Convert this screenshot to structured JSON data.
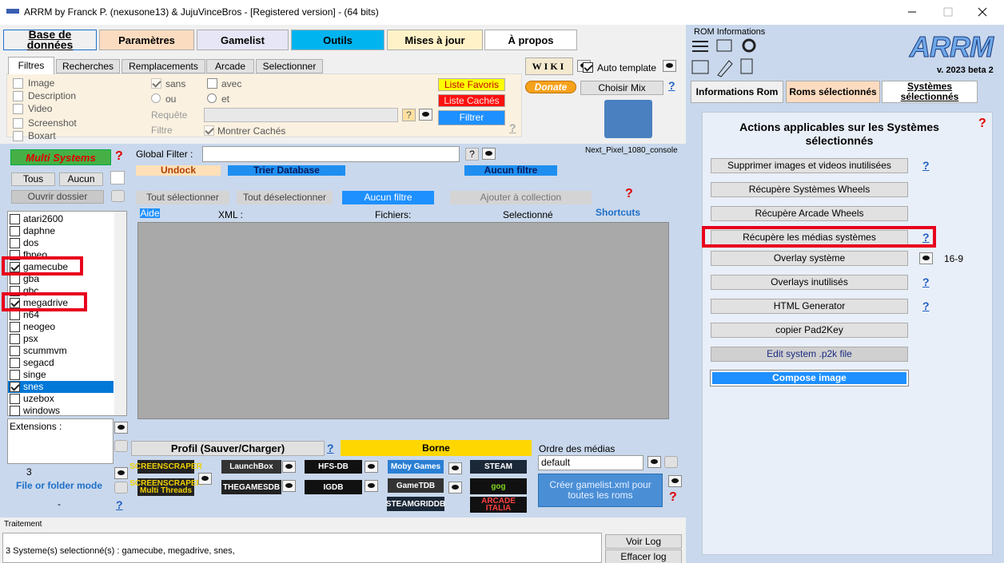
{
  "window": {
    "title": "ARRM by Franck P. (nexusone13) & JujuVinceBros - [Registered version] - (64 bits)"
  },
  "main_tabs": [
    "Base de données",
    "Paramètres",
    "Gamelist",
    "Outils",
    "Mises à jour",
    "À propos"
  ],
  "sub_tabs": [
    "Filtres",
    "Recherches",
    "Remplacements",
    "Arcade",
    "Selectionner"
  ],
  "filters": {
    "media": [
      "Image",
      "Description",
      "Video",
      "Screenshot",
      "Boxart"
    ],
    "sans": "sans",
    "avec": "avec",
    "ou": "ou",
    "et": "et",
    "requete": "Requête",
    "filtre": "Filtre",
    "montrer_caches": "Montrer Cachés",
    "liste_favoris": "Liste Favoris",
    "liste_caches": "Liste Cachés",
    "filtrer": "Filtrer"
  },
  "toolbar": {
    "wiki": "WIKI",
    "auto_template": "Auto template",
    "donate": "Donate",
    "choisir_mix": "Choisir Mix",
    "theme": "Next_Pixel_1080_console"
  },
  "help": "?",
  "systems": {
    "header": "Multi Systems",
    "tous": "Tous",
    "aucun": "Aucun",
    "ouvrir_dossier": "Ouvrir dossier",
    "list": [
      {
        "name": "atari2600",
        "checked": false
      },
      {
        "name": "daphne",
        "checked": false
      },
      {
        "name": "dos",
        "checked": false
      },
      {
        "name": "fbneo",
        "checked": false
      },
      {
        "name": "gamecube",
        "checked": true
      },
      {
        "name": "gba",
        "checked": false
      },
      {
        "name": "gbc",
        "checked": false
      },
      {
        "name": "megadrive",
        "checked": true
      },
      {
        "name": "n64",
        "checked": false
      },
      {
        "name": "neogeo",
        "checked": false
      },
      {
        "name": "psx",
        "checked": false
      },
      {
        "name": "scummvm",
        "checked": false
      },
      {
        "name": "segacd",
        "checked": false
      },
      {
        "name": "singe",
        "checked": false
      },
      {
        "name": "snes",
        "checked": true
      },
      {
        "name": "uzebox",
        "checked": false
      },
      {
        "name": "windows",
        "checked": false
      }
    ],
    "extensions": "Extensions :",
    "count": 3,
    "mode": "File or folder mode",
    "dash": "-"
  },
  "gamelist": {
    "global_filter": "Global Filter :",
    "undock": "Undock",
    "trier": "Trier Database",
    "aucun_filtre": "Aucun filtre",
    "tout_selectionner": "Tout sélectionner",
    "tout_deselectionner": "Tout déselectionner",
    "aucun_filtre_2": "Aucun filtre",
    "ajouter": "Ajouter à collection",
    "aide": "Aide",
    "xml": "XML :",
    "fichiers": "Fichiers:",
    "selectionne": "Selectionné",
    "shortcuts": "Shortcuts"
  },
  "media": {
    "profil": "Profil (Sauver/Charger)",
    "borne": "Borne",
    "ordre": "Ordre des médias",
    "default": "default",
    "creer": "Créer gamelist.xml pour toutes les roms"
  },
  "logos": [
    "SCREENSCRAPER",
    "LaunchBox",
    "HFS-DB",
    "Moby Games",
    "STEAM",
    "SCREENSCRAPER Multi Threads",
    "THEGAMESDB",
    "IGDB",
    "GameTDB",
    "gog",
    "STEAMGRIDDB",
    "ARCADE ITALIA"
  ],
  "log": {
    "label": "Traitement",
    "text": "3 Systeme(s) selectionné(s) : gamecube, megadrive, snes,",
    "voir": "Voir Log",
    "effacer": "Effacer log"
  },
  "rom_panel": {
    "label": "ROM Informations",
    "logo": "ARRM",
    "version": "v. 2023 beta 2",
    "tabs": [
      "Informations Rom",
      "Roms sélectionnés",
      "Systèmes sélectionnés"
    ],
    "title": "Actions applicables sur les Systèmes sélectionnés",
    "actions": [
      "Supprimer images et videos inutilisées",
      "Récupère Systèmes Wheels",
      "Récupère Arcade Wheels",
      "Récupère les médias systèmes",
      "Overlay système",
      "Overlays inutilisés",
      "HTML Generator",
      "copier Pad2Key",
      "Edit system .p2k file",
      "Compose image"
    ],
    "ratio": "16-9"
  }
}
